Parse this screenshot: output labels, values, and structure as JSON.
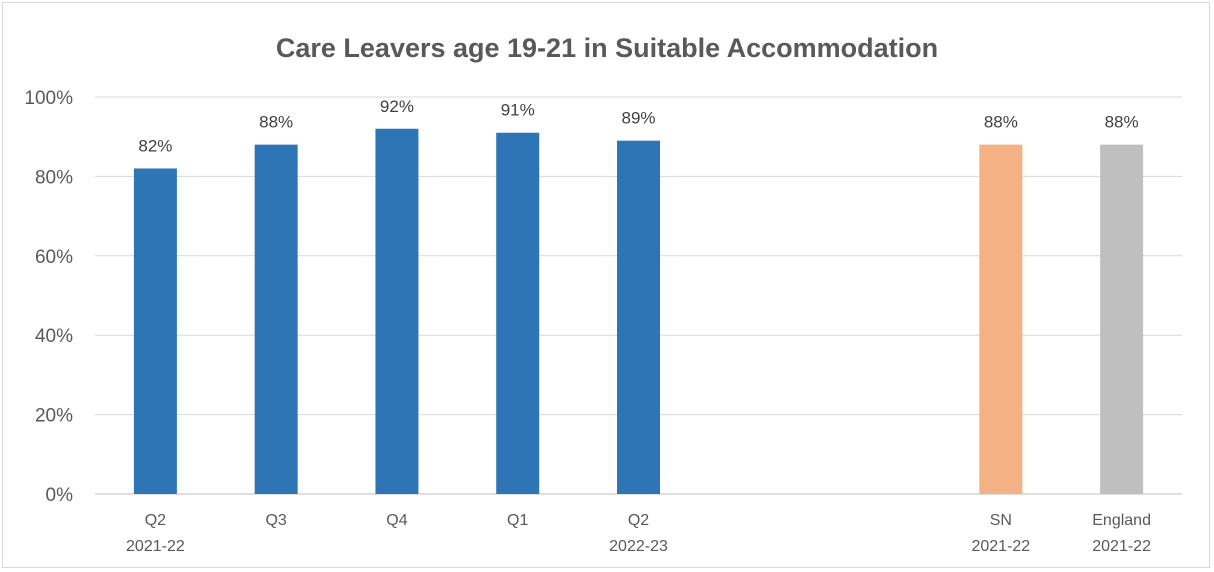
{
  "chart_data": {
    "type": "bar",
    "title": "Care Leavers age 19-21 in Suitable Accommodation",
    "xlabel": "",
    "ylabel": "",
    "ylim": [
      0,
      100
    ],
    "y_ticks": [
      "0%",
      "20%",
      "40%",
      "60%",
      "80%",
      "100%"
    ],
    "y_tick_values": [
      0,
      20,
      40,
      60,
      80,
      100
    ],
    "grid": true,
    "legend": "none",
    "categories": [
      [
        "Q2",
        "2021-22"
      ],
      [
        "Q3",
        ""
      ],
      [
        "Q4",
        ""
      ],
      [
        "Q1",
        ""
      ],
      [
        "Q2",
        "2022-23"
      ],
      [
        "SN",
        "2021-22"
      ],
      [
        "England",
        "2021-22"
      ]
    ],
    "values": [
      82,
      88,
      92,
      91,
      89,
      88,
      88
    ],
    "data_labels": [
      "82%",
      "88%",
      "92%",
      "91%",
      "89%",
      "88%",
      "88%"
    ],
    "bar_colors": [
      "#2e75b6",
      "#2e75b6",
      "#2e75b6",
      "#2e75b6",
      "#2e75b6",
      "#f4b183",
      "#bfbfbf"
    ]
  },
  "colors": {
    "gridline": "#d9d9d9",
    "axis": "#bfbfbf",
    "text": "#595959"
  }
}
